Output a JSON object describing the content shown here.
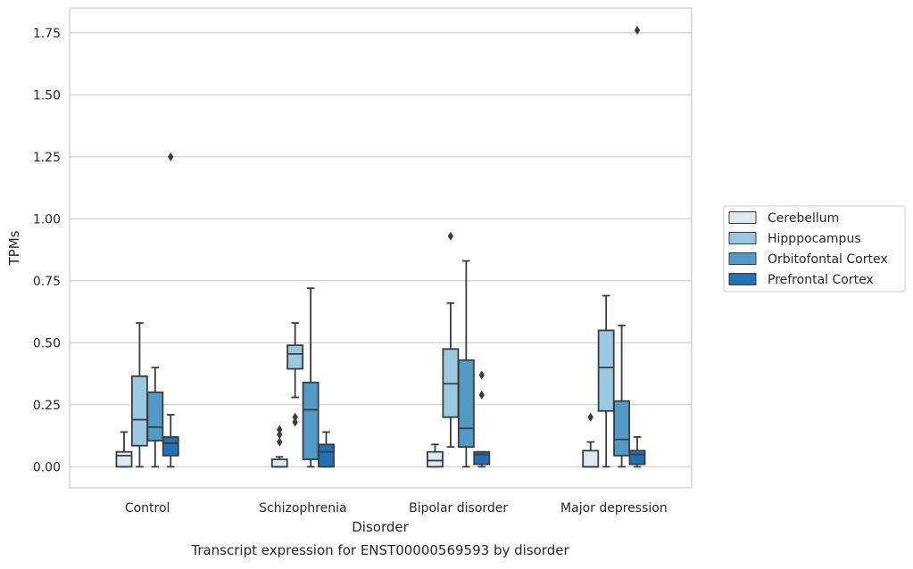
{
  "chart_data": {
    "type": "box",
    "title": "Transcript expression for ENST00000569593 by disorder",
    "xlabel": "Disorder",
    "ylabel": "TPMs",
    "ylim": [
      -0.085,
      1.85
    ],
    "yticks": [
      0.0,
      0.25,
      0.5,
      0.75,
      1.0,
      1.25,
      1.5,
      1.75
    ],
    "ytick_labels": [
      "0.00",
      "0.25",
      "0.50",
      "0.75",
      "1.00",
      "1.25",
      "1.50",
      "1.75"
    ],
    "grid": true,
    "legend_position": "right",
    "categories": [
      "Control",
      "Schizophrenia",
      "Bipolar disorder",
      "Major depression"
    ],
    "series": [
      {
        "name": "Cerebellum",
        "color": "#dbe9f6",
        "boxes": [
          {
            "whisker_low": 0.0,
            "q1": 0.0,
            "median": 0.045,
            "q3": 0.06,
            "whisker_high": 0.14,
            "outliers": []
          },
          {
            "whisker_low": 0.0,
            "q1": 0.0,
            "median": 0.0,
            "q3": 0.03,
            "whisker_high": 0.04,
            "outliers": [
              0.1,
              0.13,
              0.15
            ]
          },
          {
            "whisker_low": 0.0,
            "q1": 0.0,
            "median": 0.025,
            "q3": 0.06,
            "whisker_high": 0.09,
            "outliers": []
          },
          {
            "whisker_low": 0.0,
            "q1": 0.0,
            "median": 0.0,
            "q3": 0.065,
            "whisker_high": 0.1,
            "outliers": [
              0.2
            ]
          }
        ]
      },
      {
        "name": "Hipppocampus",
        "color": "#9ac8e0",
        "boxes": [
          {
            "whisker_low": 0.0,
            "q1": 0.085,
            "median": 0.19,
            "q3": 0.365,
            "whisker_high": 0.58,
            "outliers": []
          },
          {
            "whisker_low": 0.28,
            "q1": 0.395,
            "median": 0.455,
            "q3": 0.49,
            "whisker_high": 0.58,
            "outliers": [
              0.18,
              0.2
            ]
          },
          {
            "whisker_low": 0.08,
            "q1": 0.2,
            "median": 0.335,
            "q3": 0.475,
            "whisker_high": 0.66,
            "outliers": [
              0.93
            ]
          },
          {
            "whisker_low": 0.0,
            "q1": 0.225,
            "median": 0.4,
            "q3": 0.55,
            "whisker_high": 0.69,
            "outliers": []
          }
        ]
      },
      {
        "name": "Orbitofontal Cortex",
        "color": "#5299c6",
        "boxes": [
          {
            "whisker_low": 0.0,
            "q1": 0.105,
            "median": 0.16,
            "q3": 0.3,
            "whisker_high": 0.4,
            "outliers": []
          },
          {
            "whisker_low": 0.0,
            "q1": 0.03,
            "median": 0.23,
            "q3": 0.34,
            "whisker_high": 0.72,
            "outliers": []
          },
          {
            "whisker_low": 0.0,
            "q1": 0.08,
            "median": 0.155,
            "q3": 0.43,
            "whisker_high": 0.83,
            "outliers": []
          },
          {
            "whisker_low": 0.0,
            "q1": 0.045,
            "median": 0.11,
            "q3": 0.265,
            "whisker_high": 0.57,
            "outliers": []
          }
        ]
      },
      {
        "name": "Prefrontal Cortex",
        "color": "#2271b5",
        "boxes": [
          {
            "whisker_low": 0.0,
            "q1": 0.045,
            "median": 0.095,
            "q3": 0.12,
            "whisker_high": 0.21,
            "outliers": [
              1.25
            ]
          },
          {
            "whisker_low": 0.0,
            "q1": 0.0,
            "median": 0.06,
            "q3": 0.09,
            "whisker_high": 0.14,
            "outliers": []
          },
          {
            "whisker_low": 0.0,
            "q1": 0.01,
            "median": 0.05,
            "q3": 0.06,
            "whisker_high": 0.06,
            "outliers": [
              0.29,
              0.37
            ]
          },
          {
            "whisker_low": 0.0,
            "q1": 0.01,
            "median": 0.05,
            "q3": 0.065,
            "whisker_high": 0.12,
            "outliers": [
              1.76
            ]
          }
        ]
      }
    ]
  }
}
